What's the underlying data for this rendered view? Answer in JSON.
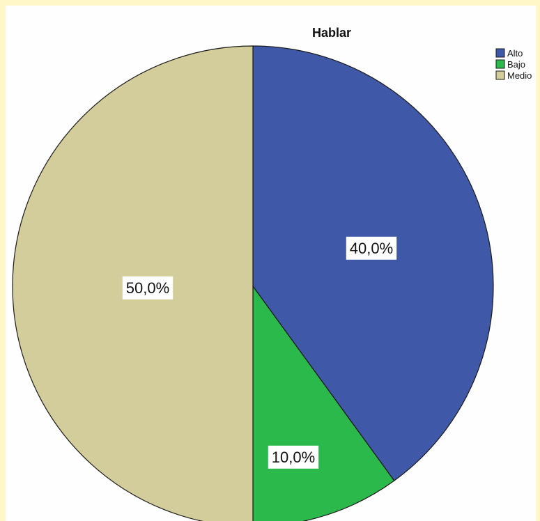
{
  "chart_data": {
    "type": "pie",
    "title": "Hablar",
    "categories": [
      "Alto",
      "Bajo",
      "Medio"
    ],
    "values": [
      40.0,
      10.0,
      50.0
    ],
    "labels": [
      "40,0%",
      "10,0%",
      "50,0%"
    ],
    "colors": [
      "#3f58a8",
      "#2cb94c",
      "#d3cd9b"
    ],
    "legend": {
      "position": "top-right",
      "entries": [
        "Alto",
        "Bajo",
        "Medio"
      ]
    },
    "start_angle": "12 o'clock",
    "direction": "clockwise"
  }
}
